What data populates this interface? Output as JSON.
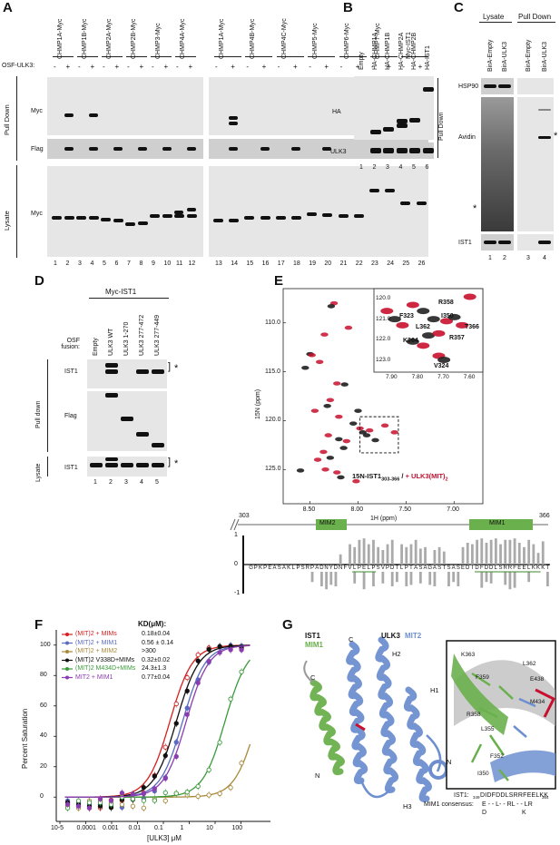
{
  "panelA": {
    "label": "A",
    "constructs": [
      "CHMP1A-Myc",
      "CHMP1B-Myc",
      "CHMP2A-Myc",
      "CHMP2B-Myc",
      "CHMP3-Myc",
      "CHMP4A-Myc",
      "CHMP1A-Myc",
      "CHMP4B-Myc",
      "CHMP4C-Myc",
      "CHMP5-Myc",
      "CHMP6-Myc",
      "CHMP7-Myc",
      "Myc-IST1"
    ],
    "osf_label": "OSF-ULK3:",
    "section_pulldown": "Pull Down",
    "section_lysate": "Lysate",
    "blot_myc": "Myc",
    "blot_flag": "Flag",
    "blot_myc2": "Myc",
    "lanes": [
      "1",
      "2",
      "3",
      "4",
      "5",
      "6",
      "7",
      "8",
      "9",
      "10",
      "11",
      "12",
      "13",
      "14",
      "15",
      "16",
      "17",
      "18",
      "19",
      "20",
      "21",
      "22",
      "23",
      "24",
      "25",
      "26"
    ]
  },
  "panelB": {
    "label": "B",
    "columns": [
      "Empty",
      "HA-CHMP1A",
      "HA-CHMP1B",
      "HA-CHMP2A",
      "HA-CHMP2B",
      "HA-IST1"
    ],
    "blot_ha": "HA",
    "blot_ulk3": "ULK3",
    "side": "Pull Down",
    "lanes": [
      "1",
      "2",
      "3",
      "4",
      "5",
      "6"
    ]
  },
  "panelC": {
    "label": "C",
    "group_lysate": "Lysate",
    "group_pulldown": "Pull Down",
    "columns": [
      "BirA-Empty",
      "BirA-ULK3",
      "BirA-Empty",
      "BirA-ULK3"
    ],
    "blot_hsp90": "HSP90",
    "blot_avidin": "Avidin",
    "blot_ist1": "IST1",
    "star": "*",
    "lanes": [
      "1",
      "2",
      "3",
      "4"
    ]
  },
  "panelD": {
    "label": "D",
    "header": "Myc-IST1",
    "osf": "OSF fusion:",
    "columns": [
      "Empty",
      "ULK3 WT",
      "ULK3 1-270",
      "ULK3 277-472",
      "ULK3 277-449"
    ],
    "section_pulldown": "Pull down",
    "section_lysate": "Lysate",
    "blot_ist1": "IST1",
    "blot_flag": "Flag",
    "blot_ist1b": "IST1",
    "star": "*",
    "lanes": [
      "1",
      "2",
      "3",
      "4",
      "5"
    ]
  },
  "panelE": {
    "label": "E",
    "y_title": "15N (ppm)",
    "x_title": "1H (ppm)",
    "y_ticks": [
      "110.0",
      "115.0",
      "120.0",
      "125.0"
    ],
    "x_ticks": [
      "8.50",
      "8.00",
      "7.50",
      "7.00"
    ],
    "inset_y_ticks": [
      "120.0",
      "121.0",
      "122.0",
      "123.0"
    ],
    "inset_x_ticks": [
      "7.90",
      "7.80",
      "7.70",
      "7.60"
    ],
    "peaks": [
      "R358",
      "F323",
      "I350",
      "L362",
      "T366",
      "R357",
      "K364",
      "V324"
    ],
    "caption_a": "15N-IST1",
    "caption_sub": "303-366",
    "caption_b": " / ",
    "caption_c": "+ ULK3(MIT)",
    "caption_sub2": "2",
    "domain_start": "303",
    "domain_end": "366",
    "mim2": "MIM2",
    "mim1": "MIM1",
    "sequence": "GPKPEASAKLPSRPADNYDNFVLPELPSVPDTLPTASAGASTSASEDIDFDDLSRRFEELKKKT",
    "y_ticks_bar": [
      "1",
      "0",
      "-1"
    ]
  },
  "panelF": {
    "label": "F",
    "kd_header": "KD(μM):",
    "legend": [
      {
        "name": "(MIT)2 + MIMs",
        "kd": "0.18±0.04",
        "color": "#d42020"
      },
      {
        "name": "(MIT)2 + MIM1",
        "kd": "0.56 ± 0.14",
        "color": "#5b6bbf"
      },
      {
        "name": "(MIT)2 + MIM2",
        "kd": ">300",
        "color": "#a8883a"
      },
      {
        "name": "(MIT)2 V338D+MIMs",
        "kd": "0.32±0.02",
        "color": "#111111"
      },
      {
        "name": "(MIT)2 M434D+MIMs",
        "kd": "24.3±1.3",
        "color": "#3a9a3a"
      },
      {
        "name": "MIT2 + MIM1",
        "kd": "0.77±0.04",
        "color": "#8a3db0"
      }
    ],
    "ylabel": "Percent Saturation",
    "xlabel": "[ULK3] μM",
    "y_ticks": [
      "0",
      "20",
      "40",
      "60",
      "80",
      "100"
    ],
    "x_ticks": [
      "10-5",
      "0.0001",
      "0.001",
      "0.01",
      "0.1",
      "1",
      "10",
      "100"
    ]
  },
  "panelG": {
    "label": "G",
    "ist1": "IST1",
    "mim1": "MIM1",
    "ulk3": "ULK3",
    "mit2": "MIT2",
    "helix_labels": [
      "C",
      "H2",
      "C",
      "H1",
      "N",
      "N",
      "H3"
    ],
    "residues": [
      "K363",
      "L362",
      "F359",
      "E438",
      "M434",
      "R358",
      "L355",
      "F352",
      "I350"
    ],
    "ist1_seq_label": "IST1:",
    "ist1_seq_start": "349",
    "ist1_seq": "DIDFDDLSRRFEELKK",
    "ist1_seq_end": "364",
    "consensus_label": "MIM1 consensus:",
    "consensus_line1": "E - - L- - RL - - LR",
    "consensus_line2": "D                    K"
  },
  "colors": {
    "red": "#c8102e",
    "blue": "#6d8fd0",
    "green": "#6ab04c",
    "black": "#111111"
  }
}
